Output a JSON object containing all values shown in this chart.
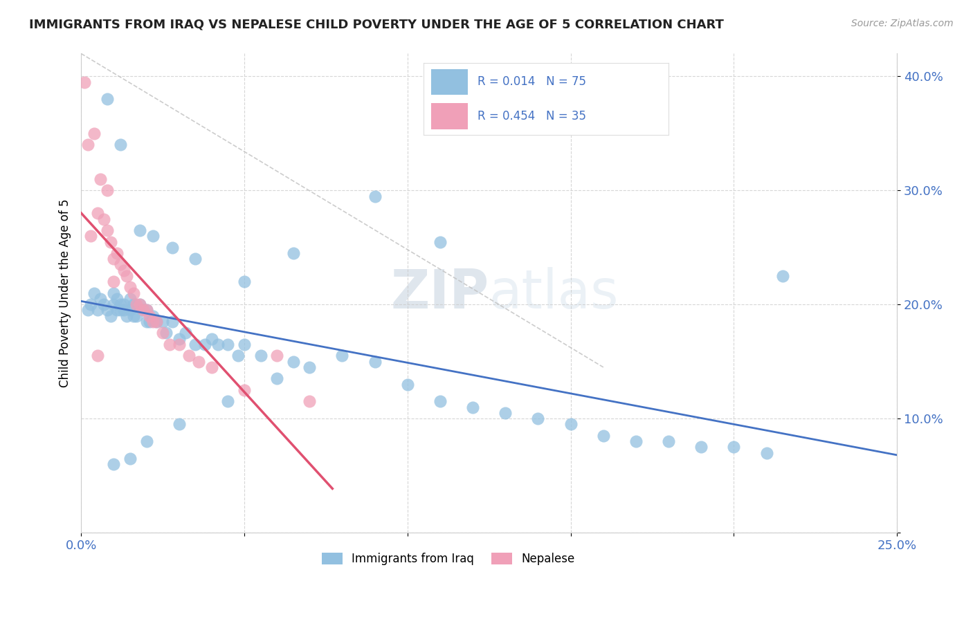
{
  "title": "IMMIGRANTS FROM IRAQ VS NEPALESE CHILD POVERTY UNDER THE AGE OF 5 CORRELATION CHART",
  "source_text": "Source: ZipAtlas.com",
  "ylabel": "Child Poverty Under the Age of 5",
  "xlim": [
    0.0,
    0.25
  ],
  "ylim": [
    0.0,
    0.42
  ],
  "blue_color": "#92c0e0",
  "pink_color": "#f0a0b8",
  "blue_line_color": "#4472c4",
  "pink_line_color": "#e05070",
  "dashed_line_color": "#c0c0c0",
  "legend_label1": "Immigrants from Iraq",
  "legend_label2": "Nepalese",
  "blue_R": 0.014,
  "blue_N": 75,
  "pink_R": 0.454,
  "pink_N": 35,
  "blue_scatter_x": [
    0.002,
    0.003,
    0.004,
    0.005,
    0.006,
    0.007,
    0.008,
    0.009,
    0.01,
    0.01,
    0.011,
    0.011,
    0.012,
    0.012,
    0.013,
    0.013,
    0.014,
    0.015,
    0.015,
    0.016,
    0.016,
    0.017,
    0.018,
    0.019,
    0.02,
    0.02,
    0.021,
    0.022,
    0.023,
    0.025,
    0.026,
    0.028,
    0.03,
    0.032,
    0.035,
    0.038,
    0.04,
    0.042,
    0.045,
    0.048,
    0.05,
    0.055,
    0.06,
    0.065,
    0.07,
    0.08,
    0.09,
    0.1,
    0.11,
    0.12,
    0.13,
    0.14,
    0.15,
    0.16,
    0.17,
    0.18,
    0.19,
    0.2,
    0.21,
    0.215,
    0.008,
    0.012,
    0.018,
    0.022,
    0.028,
    0.035,
    0.05,
    0.065,
    0.09,
    0.11,
    0.01,
    0.015,
    0.02,
    0.03,
    0.045
  ],
  "blue_scatter_y": [
    0.195,
    0.2,
    0.21,
    0.195,
    0.205,
    0.2,
    0.195,
    0.19,
    0.2,
    0.21,
    0.195,
    0.205,
    0.2,
    0.195,
    0.2,
    0.195,
    0.19,
    0.195,
    0.205,
    0.2,
    0.19,
    0.19,
    0.2,
    0.195,
    0.185,
    0.195,
    0.185,
    0.19,
    0.185,
    0.185,
    0.175,
    0.185,
    0.17,
    0.175,
    0.165,
    0.165,
    0.17,
    0.165,
    0.165,
    0.155,
    0.165,
    0.155,
    0.135,
    0.15,
    0.145,
    0.155,
    0.15,
    0.13,
    0.115,
    0.11,
    0.105,
    0.1,
    0.095,
    0.085,
    0.08,
    0.08,
    0.075,
    0.075,
    0.07,
    0.225,
    0.38,
    0.34,
    0.265,
    0.26,
    0.25,
    0.24,
    0.22,
    0.245,
    0.295,
    0.255,
    0.06,
    0.065,
    0.08,
    0.095,
    0.115
  ],
  "pink_scatter_x": [
    0.001,
    0.002,
    0.003,
    0.004,
    0.005,
    0.006,
    0.007,
    0.008,
    0.008,
    0.009,
    0.01,
    0.01,
    0.011,
    0.012,
    0.013,
    0.014,
    0.015,
    0.016,
    0.017,
    0.018,
    0.019,
    0.02,
    0.021,
    0.022,
    0.023,
    0.025,
    0.027,
    0.03,
    0.033,
    0.036,
    0.04,
    0.05,
    0.06,
    0.07,
    0.005
  ],
  "pink_scatter_y": [
    0.395,
    0.34,
    0.26,
    0.35,
    0.28,
    0.31,
    0.275,
    0.265,
    0.3,
    0.255,
    0.24,
    0.22,
    0.245,
    0.235,
    0.23,
    0.225,
    0.215,
    0.21,
    0.2,
    0.2,
    0.195,
    0.195,
    0.19,
    0.185,
    0.185,
    0.175,
    0.165,
    0.165,
    0.155,
    0.15,
    0.145,
    0.125,
    0.155,
    0.115,
    0.155
  ],
  "dashed_line_x": [
    0.0,
    0.16
  ],
  "dashed_line_y": [
    0.42,
    0.145
  ]
}
